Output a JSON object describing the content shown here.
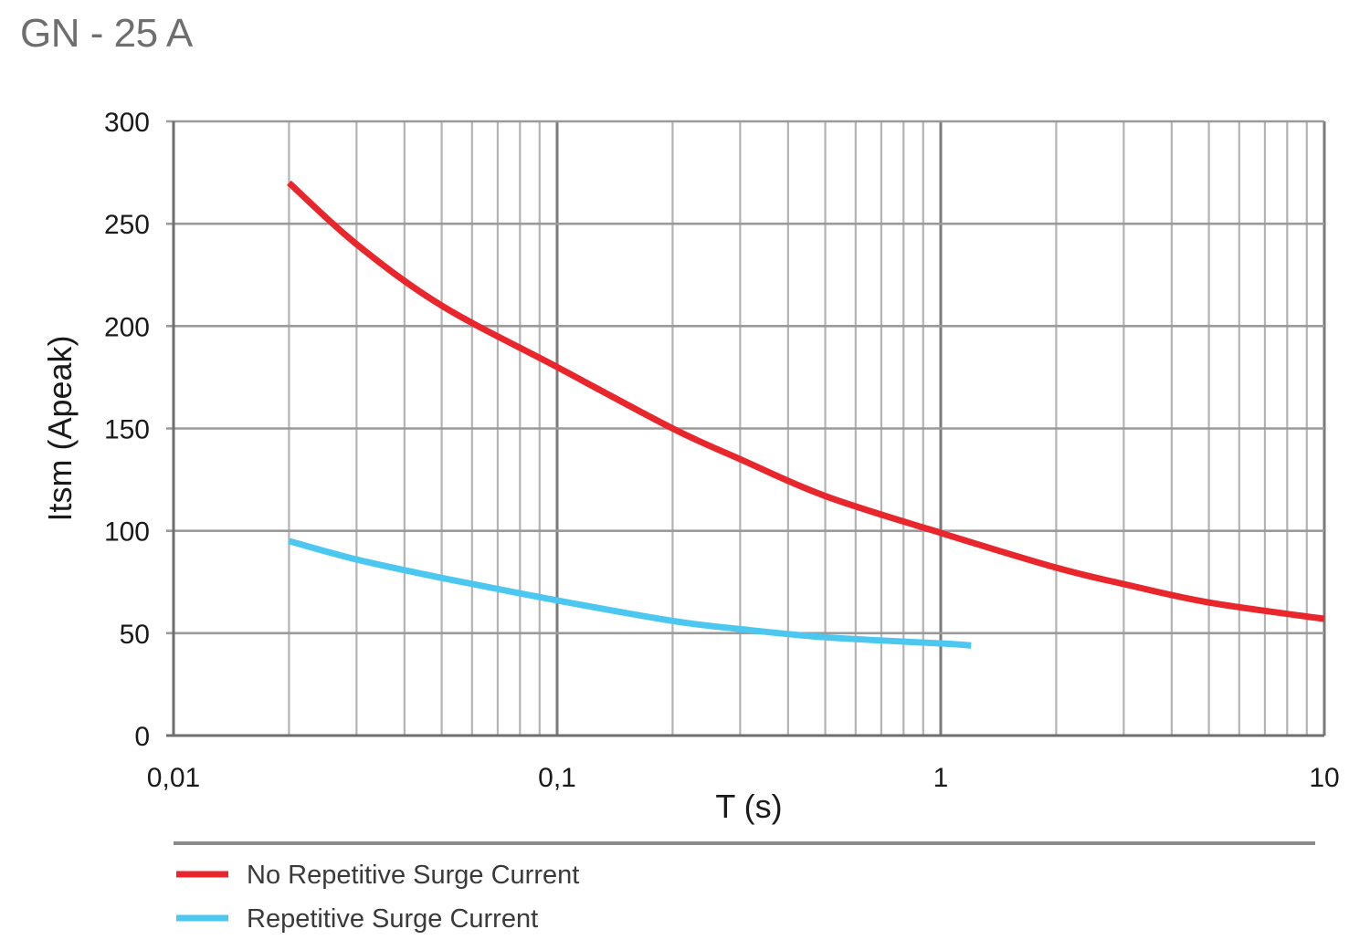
{
  "chart_data": {
    "type": "line",
    "title": "GN - 25 A",
    "xlabel": "T (s)",
    "ylabel": "Itsm (Apeak)",
    "x_scale": "log",
    "xlim": [
      0.01,
      10
    ],
    "ylim": [
      0,
      300
    ],
    "x_ticks": [
      0.01,
      0.1,
      1,
      10
    ],
    "x_tick_labels": [
      "0,01",
      "0,1",
      "1",
      "10"
    ],
    "y_ticks": [
      0,
      50,
      100,
      150,
      200,
      250,
      300
    ],
    "y_tick_labels": [
      "0",
      "50",
      "100",
      "150",
      "200",
      "250",
      "300"
    ],
    "grid": true,
    "legend_position": "bottom",
    "series": [
      {
        "name": "No Repetitive Surge Current",
        "color": "#e8262b",
        "x": [
          0.02,
          0.03,
          0.05,
          0.1,
          0.2,
          0.3,
          0.5,
          1,
          2,
          3,
          5,
          10
        ],
        "y": [
          270,
          240,
          210,
          180,
          150,
          135,
          117,
          99,
          82,
          74,
          65,
          57
        ]
      },
      {
        "name": "Repetitive Surge Current",
        "color": "#4cc8f0",
        "x": [
          0.02,
          0.03,
          0.05,
          0.1,
          0.2,
          0.3,
          0.5,
          1,
          1.2
        ],
        "y": [
          95,
          86,
          77,
          66,
          56,
          52,
          48,
          45,
          44
        ]
      }
    ]
  }
}
